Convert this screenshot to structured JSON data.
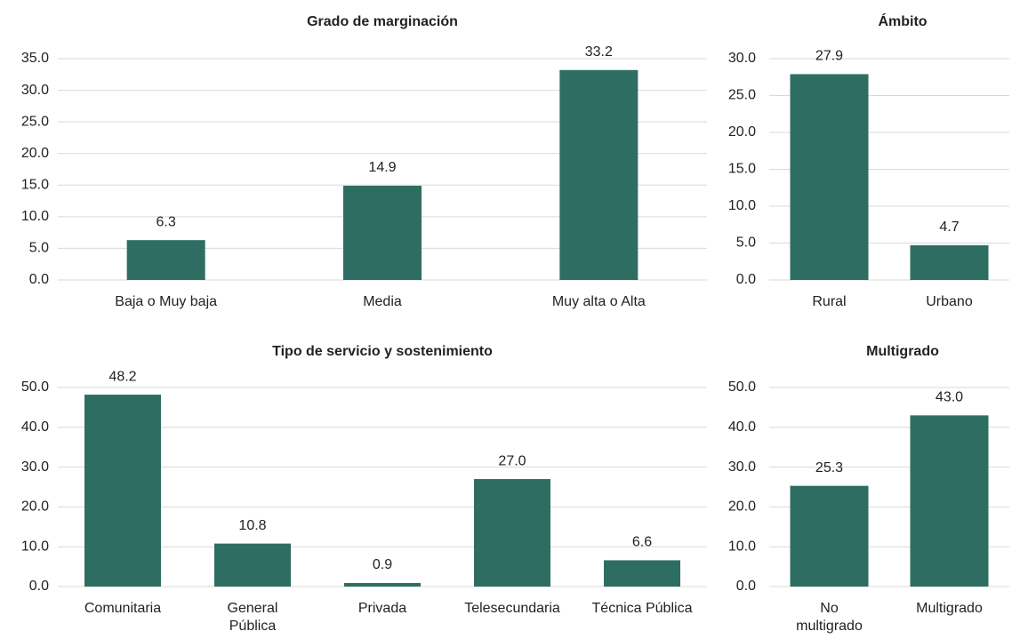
{
  "chart_data": [
    {
      "type": "bar",
      "title": "Grado de marginación",
      "categories": [
        "Baja o Muy baja",
        "Media",
        "Muy alta o Alta"
      ],
      "values": [
        6.3,
        14.9,
        33.2
      ],
      "value_labels": [
        "6.3",
        "14.9",
        "33.2"
      ],
      "color": "#2e6e62",
      "ylim": [
        0,
        35
      ],
      "yticks": [
        {
          "value": 0,
          "label": "0.0"
        },
        {
          "value": 5,
          "label": "5.0"
        },
        {
          "value": 10,
          "label": "10.0"
        },
        {
          "value": 15,
          "label": "15.0"
        },
        {
          "value": 20,
          "label": "20.0"
        },
        {
          "value": 25,
          "label": "25.0"
        },
        {
          "value": 30,
          "label": "30.0"
        },
        {
          "value": 35,
          "label": "35.0"
        }
      ],
      "grid": true
    },
    {
      "type": "bar",
      "title": "Ámbito",
      "categories": [
        "Rural",
        "Urbano"
      ],
      "values": [
        27.9,
        4.7
      ],
      "value_labels": [
        "27.9",
        "4.7"
      ],
      "color": "#2e6e62",
      "ylim": [
        0,
        30
      ],
      "yticks": [
        {
          "value": 0,
          "label": "0.0"
        },
        {
          "value": 5,
          "label": "5.0"
        },
        {
          "value": 10,
          "label": "10.0"
        },
        {
          "value": 15,
          "label": "15.0"
        },
        {
          "value": 20,
          "label": "20.0"
        },
        {
          "value": 25,
          "label": "25.0"
        },
        {
          "value": 30,
          "label": "30.0"
        }
      ],
      "grid": true
    },
    {
      "type": "bar",
      "title": "Tipo de servicio y sostenimiento",
      "categories": [
        "Comunitaria",
        "General\nPública",
        "Privada",
        "Telesecundaria",
        "Técnica Pública"
      ],
      "values": [
        48.2,
        10.8,
        0.9,
        27.0,
        6.6
      ],
      "value_labels": [
        "48.2",
        "10.8",
        "0.9",
        "27.0",
        "6.6"
      ],
      "color": "#2e6e62",
      "ylim": [
        0,
        50
      ],
      "yticks": [
        {
          "value": 0,
          "label": "0.0"
        },
        {
          "value": 10,
          "label": "10.0"
        },
        {
          "value": 20,
          "label": "20.0"
        },
        {
          "value": 30,
          "label": "30.0"
        },
        {
          "value": 40,
          "label": "40.0"
        },
        {
          "value": 50,
          "label": "50.0"
        }
      ],
      "grid": true
    },
    {
      "type": "bar",
      "title": "Multigrado",
      "categories": [
        "No\nmultigrado",
        "Multigrado"
      ],
      "values": [
        25.3,
        43.0
      ],
      "value_labels": [
        "25.3",
        "43.0"
      ],
      "color": "#2e6e62",
      "ylim": [
        0,
        50
      ],
      "yticks": [
        {
          "value": 0,
          "label": "0.0"
        },
        {
          "value": 10,
          "label": "10.0"
        },
        {
          "value": 20,
          "label": "20.0"
        },
        {
          "value": 30,
          "label": "30.0"
        },
        {
          "value": 40,
          "label": "40.0"
        },
        {
          "value": 50,
          "label": "50.0"
        }
      ],
      "grid": true
    }
  ]
}
